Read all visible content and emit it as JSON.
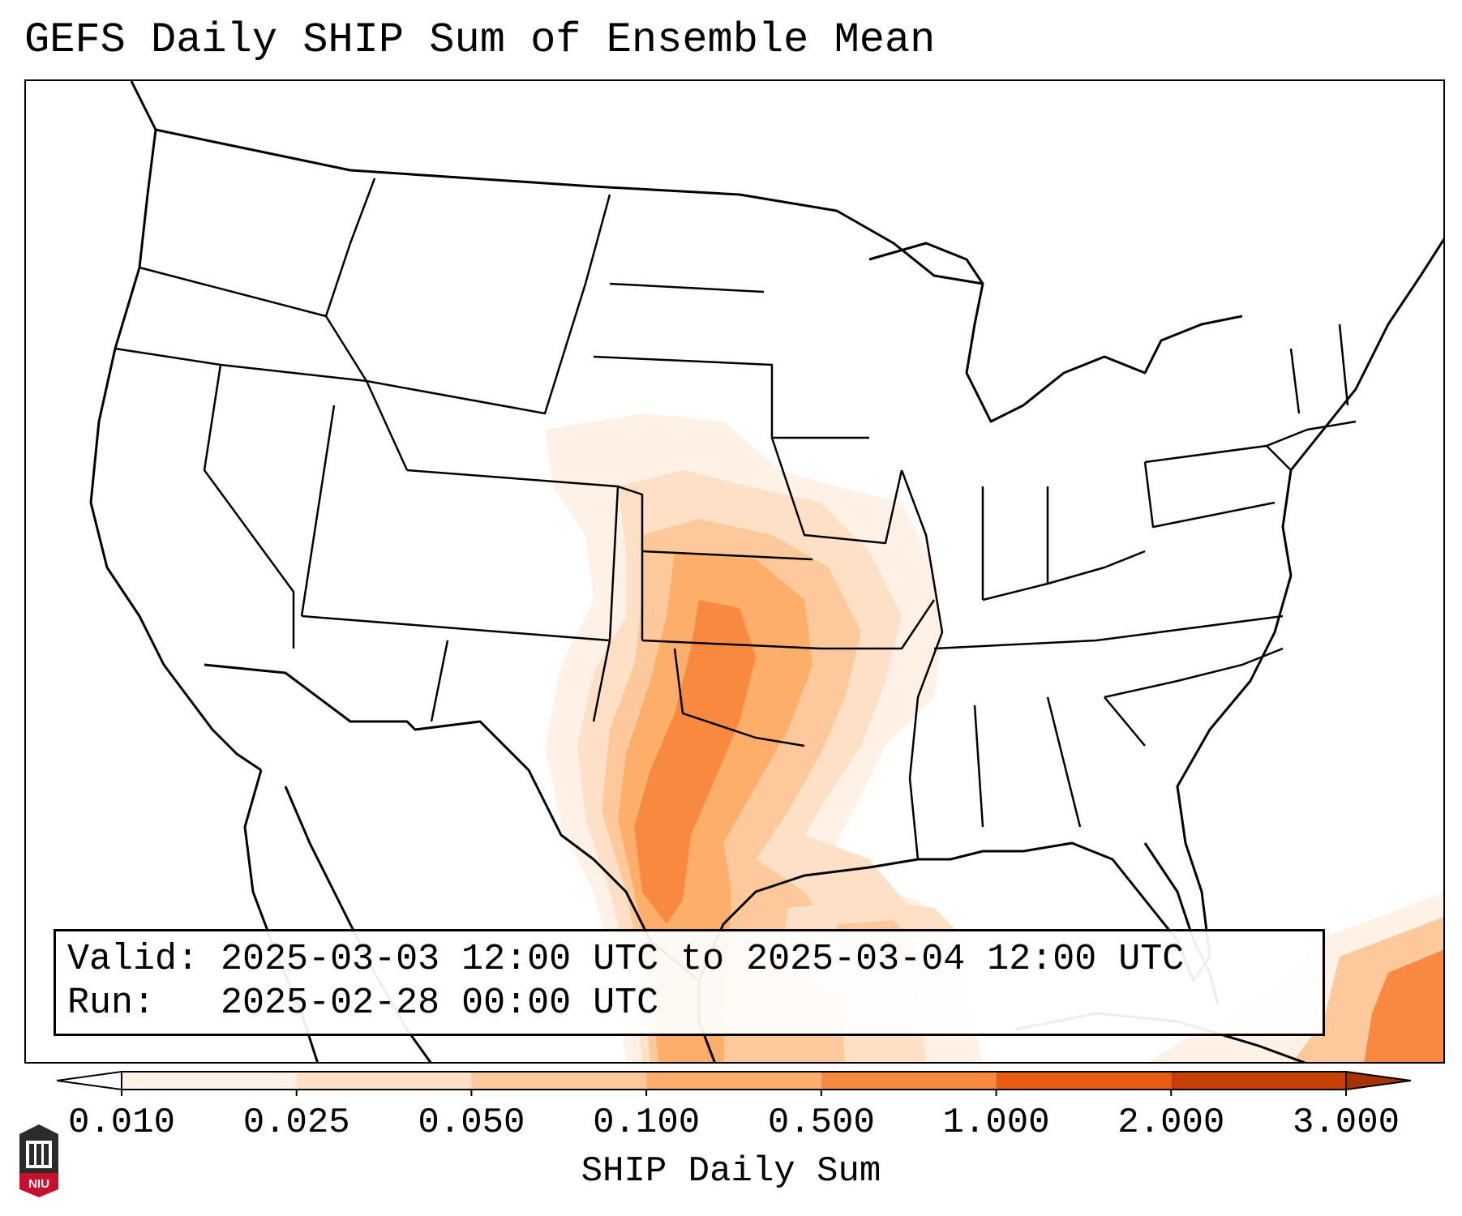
{
  "title": "GEFS Daily SHIP Sum of Ensemble Mean",
  "info": {
    "valid_label": "Valid:",
    "valid_value": "2025-03-03 12:00 UTC to 2025-03-04 12:00 UTC",
    "run_label": "Run:",
    "run_value": "2025-02-28 00:00 UTC"
  },
  "colorbar": {
    "label": "SHIP Daily Sum",
    "ticks": [
      "0.010",
      "0.025",
      "0.050",
      "0.100",
      "0.500",
      "1.000",
      "2.000",
      "3.000"
    ],
    "colors": [
      "#fff1e5",
      "#fde0c5",
      "#fdc99b",
      "#fdae6b",
      "#f8893f",
      "#e85d12",
      "#c73f05"
    ],
    "extend": "both"
  },
  "logo": {
    "text": "NIU",
    "colors": {
      "red": "#c8102e",
      "dark": "#2b2b2b"
    }
  },
  "map": {
    "projection": "conus-lambert",
    "field": "SHIP daily sum",
    "colors": {
      "land_outline": "#000000",
      "background": "#ffffff"
    }
  }
}
